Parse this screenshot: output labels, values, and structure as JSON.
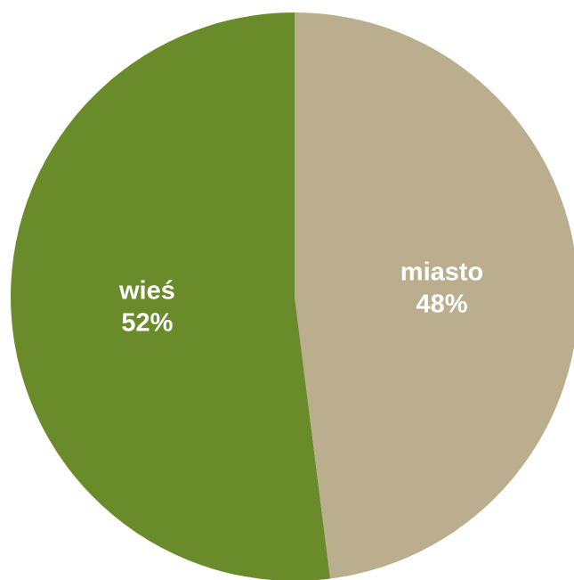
{
  "chart_data": {
    "type": "pie",
    "slices": [
      {
        "label": "miasto",
        "value": 48,
        "value_label": "48%",
        "color": "#BBAE8E"
      },
      {
        "label": "wieś",
        "value": 52,
        "value_label": "52%",
        "color": "#6A8B29"
      }
    ],
    "start_direction": "top",
    "direction": "clockwise",
    "label_color": "#FFFFFF",
    "legend": "none"
  }
}
